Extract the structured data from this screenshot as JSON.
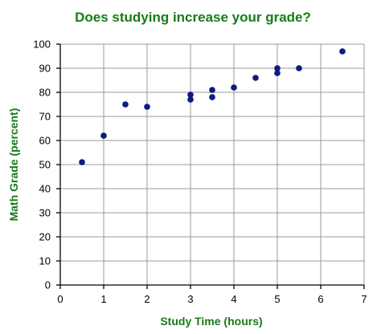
{
  "chart_data": {
    "type": "scatter",
    "title": "Does studying increase your grade?",
    "xlabel": "Study Time (hours)",
    "ylabel": "Math Grade (percent)",
    "xlim": [
      0,
      7
    ],
    "ylim": [
      0,
      100
    ],
    "x_ticks": [
      "0",
      "1",
      "2",
      "3",
      "4",
      "5",
      "6",
      "7"
    ],
    "y_ticks": [
      "0",
      "10",
      "20",
      "30",
      "40",
      "50",
      "60",
      "70",
      "80",
      "90",
      "100"
    ],
    "grid": true,
    "colors": {
      "title": "#1a7a1a",
      "points": "#0d1a8c",
      "grid": "#9a9a9a"
    },
    "series": [
      {
        "x": [
          0.5,
          1,
          1.5,
          2,
          3,
          3,
          3.5,
          3.5,
          4,
          4.5,
          5,
          5,
          5.5,
          6.5
        ],
        "y": [
          51,
          62,
          75,
          74,
          79,
          77,
          81,
          78,
          82,
          86,
          90,
          88,
          90,
          97
        ]
      }
    ]
  }
}
